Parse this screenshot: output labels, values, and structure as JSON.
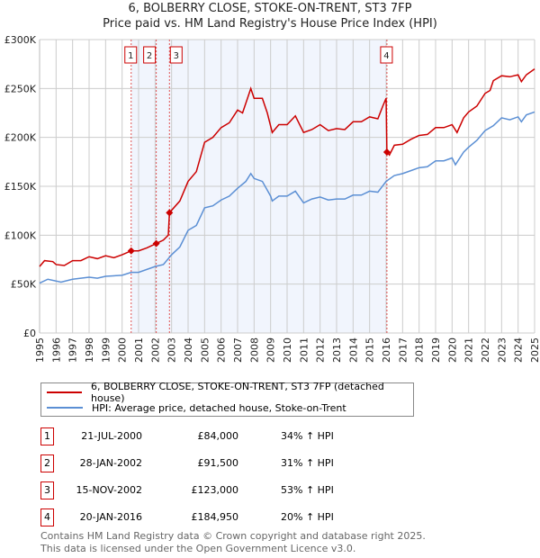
{
  "chart_data": {
    "type": "line",
    "title": "6, BOLBERRY CLOSE, STOKE-ON-TRENT, ST3 7FP",
    "subtitle": "Price paid vs. HM Land Registry's House Price Index (HPI)",
    "xlim": [
      1995,
      2025
    ],
    "ylim": [
      0,
      300000
    ],
    "x_ticks": [
      "1995",
      "1996",
      "1997",
      "1998",
      "1999",
      "2000",
      "2001",
      "2002",
      "2003",
      "2004",
      "2005",
      "2006",
      "2007",
      "2008",
      "2009",
      "2010",
      "2011",
      "2012",
      "2013",
      "2014",
      "2015",
      "2016",
      "2017",
      "2018",
      "2019",
      "2020",
      "2021",
      "2022",
      "2023",
      "2024",
      "2025"
    ],
    "y_ticks": [
      {
        "v": 0,
        "label": "£0"
      },
      {
        "v": 50000,
        "label": "£50K"
      },
      {
        "v": 100000,
        "label": "£100K"
      },
      {
        "v": 150000,
        "label": "£150K"
      },
      {
        "v": 200000,
        "label": "£200K"
      },
      {
        "v": 250000,
        "label": "£250K"
      },
      {
        "v": 300000,
        "label": "£300K"
      }
    ],
    "grid": true,
    "shaded_range": [
      2000.55,
      2016.05
    ],
    "series": [
      {
        "name": "6, BOLBERRY CLOSE, STOKE-ON-TRENT, ST3 7FP (detached house)",
        "color": "#cc0000",
        "x": [
          1995,
          1995.3,
          1995.8,
          1996,
          1996.5,
          1997,
          1997.5,
          1998,
          1998.5,
          1999,
          1999.5,
          2000,
          2000.55,
          2001,
          2001.5,
          2002.07,
          2002.5,
          2002.8,
          2002.87,
          2003.5,
          2004,
          2004.5,
          2005,
          2005.5,
          2006,
          2006.5,
          2007,
          2007.3,
          2007.8,
          2008,
          2008.5,
          2008.8,
          2009.1,
          2009.5,
          2010,
          2010.5,
          2011,
          2011.5,
          2012,
          2012.5,
          2013,
          2013.5,
          2014,
          2014.5,
          2015,
          2015.5,
          2015.8,
          2016,
          2016.05,
          2016.2,
          2016.5,
          2017,
          2017.5,
          2018,
          2018.5,
          2019,
          2019.5,
          2020,
          2020.3,
          2020.7,
          2021,
          2021.5,
          2022,
          2022.3,
          2022.5,
          2023,
          2023.5,
          2024,
          2024.2,
          2024.5,
          2025
        ],
        "y": [
          68,
          74,
          73,
          70,
          69,
          74,
          74,
          78,
          76,
          79,
          77,
          80,
          84,
          84,
          87,
          91.5,
          95,
          100,
          123,
          135,
          155,
          165,
          195,
          200,
          210,
          215,
          228,
          225,
          250,
          240,
          240,
          225,
          205,
          213,
          213,
          222,
          205,
          208,
          213,
          207,
          209,
          208,
          216,
          216,
          221,
          219,
          232,
          240,
          185,
          182,
          192,
          193,
          198,
          202,
          203,
          210,
          210,
          213,
          205,
          220,
          226,
          232,
          245,
          248,
          258,
          263,
          262,
          264,
          257,
          264,
          270
        ]
      },
      {
        "name": "HPI: Average price, detached house, Stoke-on-Trent",
        "color": "#5b8fd4",
        "x": [
          1995,
          1995.5,
          1996.3,
          1997,
          1998,
          1998.5,
          1999,
          2000,
          2000.55,
          2001,
          2002,
          2002.5,
          2003,
          2003.5,
          2004,
          2004.5,
          2005,
          2005.5,
          2006,
          2006.5,
          2007,
          2007.5,
          2007.8,
          2008,
          2008.5,
          2009,
          2009.1,
          2009.5,
          2010,
          2010.5,
          2011,
          2011.5,
          2012,
          2012.5,
          2013,
          2013.5,
          2014,
          2014.5,
          2015,
          2015.5,
          2016,
          2016.5,
          2017,
          2017.5,
          2018,
          2018.5,
          2019,
          2019.5,
          2020,
          2020.2,
          2020.7,
          2021,
          2021.5,
          2022,
          2022.5,
          2023,
          2023.5,
          2024,
          2024.2,
          2024.5,
          2025
        ],
        "y": [
          51,
          55,
          52,
          55,
          57,
          56,
          58,
          59,
          62,
          62,
          68,
          70,
          80,
          88,
          105,
          110,
          128,
          130,
          136,
          140,
          148,
          155,
          163,
          158,
          155,
          140,
          135,
          140,
          140,
          145,
          133,
          137,
          139,
          136,
          137,
          137,
          141,
          141,
          145,
          144,
          155,
          161,
          163,
          166,
          169,
          170,
          176,
          176,
          179,
          172,
          185,
          190,
          197,
          207,
          212,
          220,
          218,
          221,
          216,
          223,
          226
        ]
      }
    ],
    "sales": [
      {
        "n": "1",
        "x": 2000.55,
        "date": "21-JUL-2000",
        "price": "£84,000",
        "value": 84,
        "hpi": "34% ↑ HPI"
      },
      {
        "n": "2",
        "x": 2002.07,
        "date": "28-JAN-2002",
        "price": "£91,500",
        "value": 91.5,
        "hpi": "31% ↑ HPI"
      },
      {
        "n": "3",
        "x": 2002.87,
        "date": "15-NOV-2002",
        "price": "£123,000",
        "value": 123,
        "hpi": "53% ↑ HPI"
      },
      {
        "n": "4",
        "x": 2016.05,
        "date": "20-JAN-2016",
        "price": "£184,950",
        "value": 184.95,
        "hpi": "20% ↑ HPI"
      }
    ]
  },
  "footer": {
    "line1": "Contains HM Land Registry data © Crown copyright and database right 2025.",
    "line2": "This data is licensed under the Open Government Licence v3.0."
  }
}
